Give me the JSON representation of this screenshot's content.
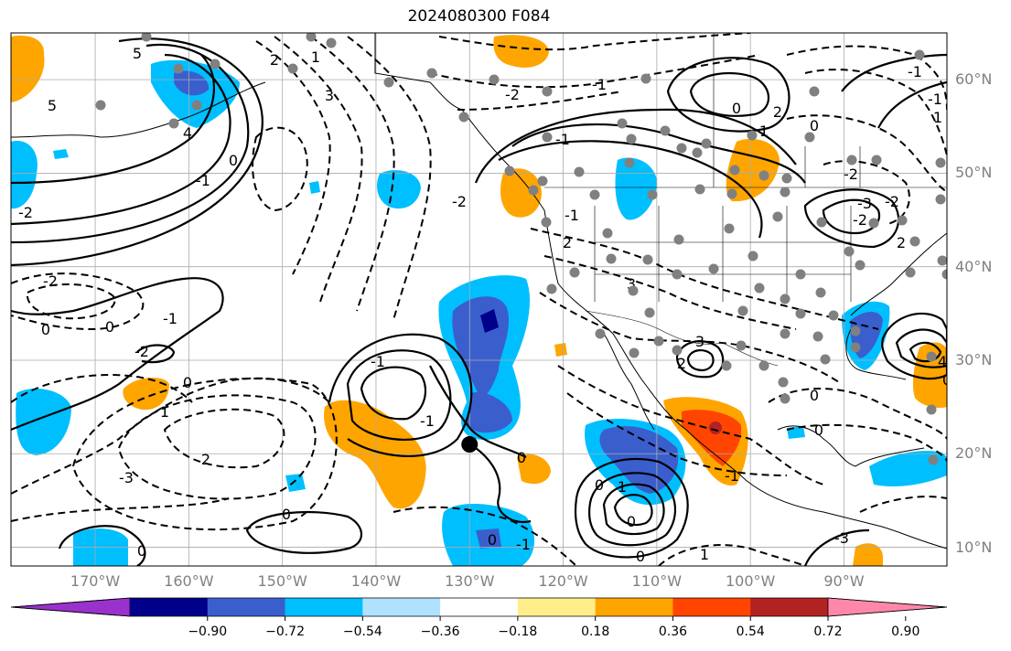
{
  "title": "2024080300 F084",
  "lat_labels": [
    {
      "text": "60°N",
      "lat": 60
    },
    {
      "text": "50°N",
      "lat": 50
    },
    {
      "text": "40°N",
      "lat": 40
    },
    {
      "text": "30°N",
      "lat": 30
    },
    {
      "text": "20°N",
      "lat": 20
    },
    {
      "text": "10°N",
      "lat": 10
    }
  ],
  "lon_labels": [
    {
      "text": "170°W",
      "lon": -170
    },
    {
      "text": "160°W",
      "lon": -160
    },
    {
      "text": "150°W",
      "lon": -150
    },
    {
      "text": "140°W",
      "lon": -140
    },
    {
      "text": "130°W",
      "lon": -130
    },
    {
      "text": "120°W",
      "lon": -120
    },
    {
      "text": "110°W",
      "lon": -110
    },
    {
      "text": "100°W",
      "lon": -100
    },
    {
      "text": "90°W",
      "lon": -90
    }
  ],
  "colorbar": {
    "ticks": [
      "−0.90",
      "−0.72",
      "−0.54",
      "−0.36",
      "−0.18",
      "0.18",
      "0.36",
      "0.54",
      "0.72",
      "0.90"
    ],
    "colors": [
      "#9932cc",
      "#00008b",
      "#3a5fcd",
      "#00bfff",
      "#b0e2ff",
      "#ffffff",
      "#ffee8a",
      "#ffa500",
      "#ff4500",
      "#b22222",
      "#ff88aa"
    ]
  },
  "colors": {
    "gridline": "#aaaaaa",
    "coastline": "#000000",
    "station": "#808080",
    "contour": "#000000"
  },
  "map_data": {
    "extent_lon": [
      -179,
      -79
    ],
    "extent_lat": [
      8,
      65
    ],
    "contour_labels": [
      "5",
      "5",
      "4",
      "3",
      "2",
      "1",
      "0",
      "-1",
      "-2",
      "-2",
      "-2",
      "-1",
      "0",
      "0",
      "-1",
      "-2",
      "0",
      "1",
      "2",
      "-3",
      "0",
      "0",
      "-2",
      "-1",
      "0",
      "1",
      "2",
      "-1",
      "-2",
      "-3",
      "-1",
      "1",
      "2",
      "3",
      "2",
      "0",
      "-1",
      "0",
      "0",
      "1",
      "-3",
      "0",
      "0",
      "-2",
      "-2",
      "-1",
      "0",
      "1",
      "0",
      "-1",
      "-1",
      "0",
      "-1",
      "2",
      "3",
      "4",
      "0"
    ],
    "cyclone_marker": {
      "lon": -130,
      "lat": 21
    }
  }
}
